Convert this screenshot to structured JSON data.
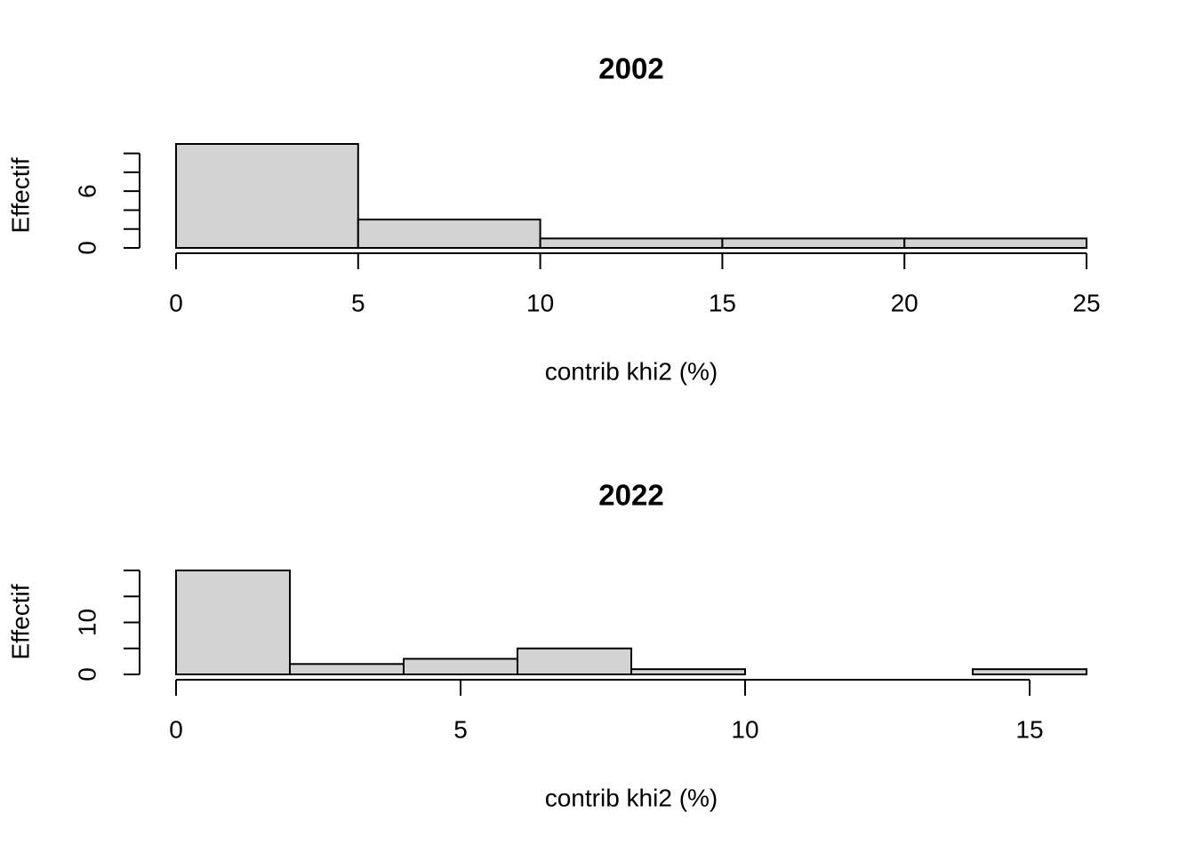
{
  "chart_data": [
    {
      "type": "histogram",
      "title": "2002",
      "xlabel": "contrib khi2 (%)",
      "ylabel": "Effectif",
      "bins": [
        0,
        5,
        10,
        15,
        20,
        25
      ],
      "values": [
        11,
        3,
        1,
        1,
        1
      ],
      "color": "#d3d3d3",
      "xlim": [
        0,
        25
      ],
      "xticks": [
        0,
        5,
        10,
        15,
        20,
        25
      ],
      "ylim": [
        0,
        11
      ],
      "yticks": [
        0,
        {
          "value": 2,
          "label": null
        },
        {
          "value": 4,
          "label": null
        },
        6,
        {
          "value": 8,
          "label": null
        },
        {
          "value": 10,
          "label": null
        }
      ]
    },
    {
      "type": "histogram",
      "title": "2022",
      "xlabel": "contrib khi2 (%)",
      "ylabel": "Effectif",
      "bins": [
        0,
        2,
        4,
        6,
        8,
        10,
        12,
        14,
        16
      ],
      "values": [
        20,
        2,
        3,
        5,
        1,
        0,
        0,
        1
      ],
      "color": "#d3d3d3",
      "xlim": [
        0,
        16
      ],
      "xticks": [
        0,
        5,
        10,
        15
      ],
      "ylim": [
        0,
        20
      ],
      "yticks": [
        0,
        {
          "value": 5,
          "label": null
        },
        10,
        {
          "value": 15,
          "label": null
        },
        {
          "value": 20,
          "label": null
        }
      ]
    }
  ]
}
